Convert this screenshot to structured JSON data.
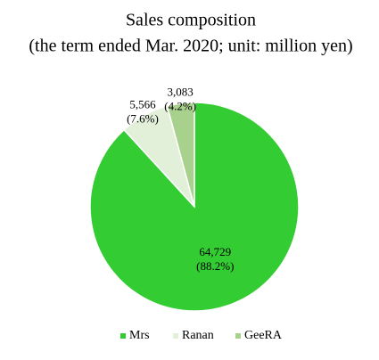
{
  "chart_data": {
    "type": "pie",
    "title": "Sales composition",
    "subtitle": "(the term ended Mar. 2020; unit: million yen)",
    "categories": [
      "Mrs",
      "Ranan",
      "GeeRA"
    ],
    "values": [
      64729,
      5566,
      3083
    ],
    "value_labels": [
      "64,729",
      "5,566",
      "3,083"
    ],
    "percent_labels": [
      "(88.2%)",
      "(7.6%)",
      "(4.2%)"
    ],
    "colors": [
      "#33cc33",
      "#e2f0d9",
      "#a9d18e"
    ],
    "legend": "bottom"
  }
}
